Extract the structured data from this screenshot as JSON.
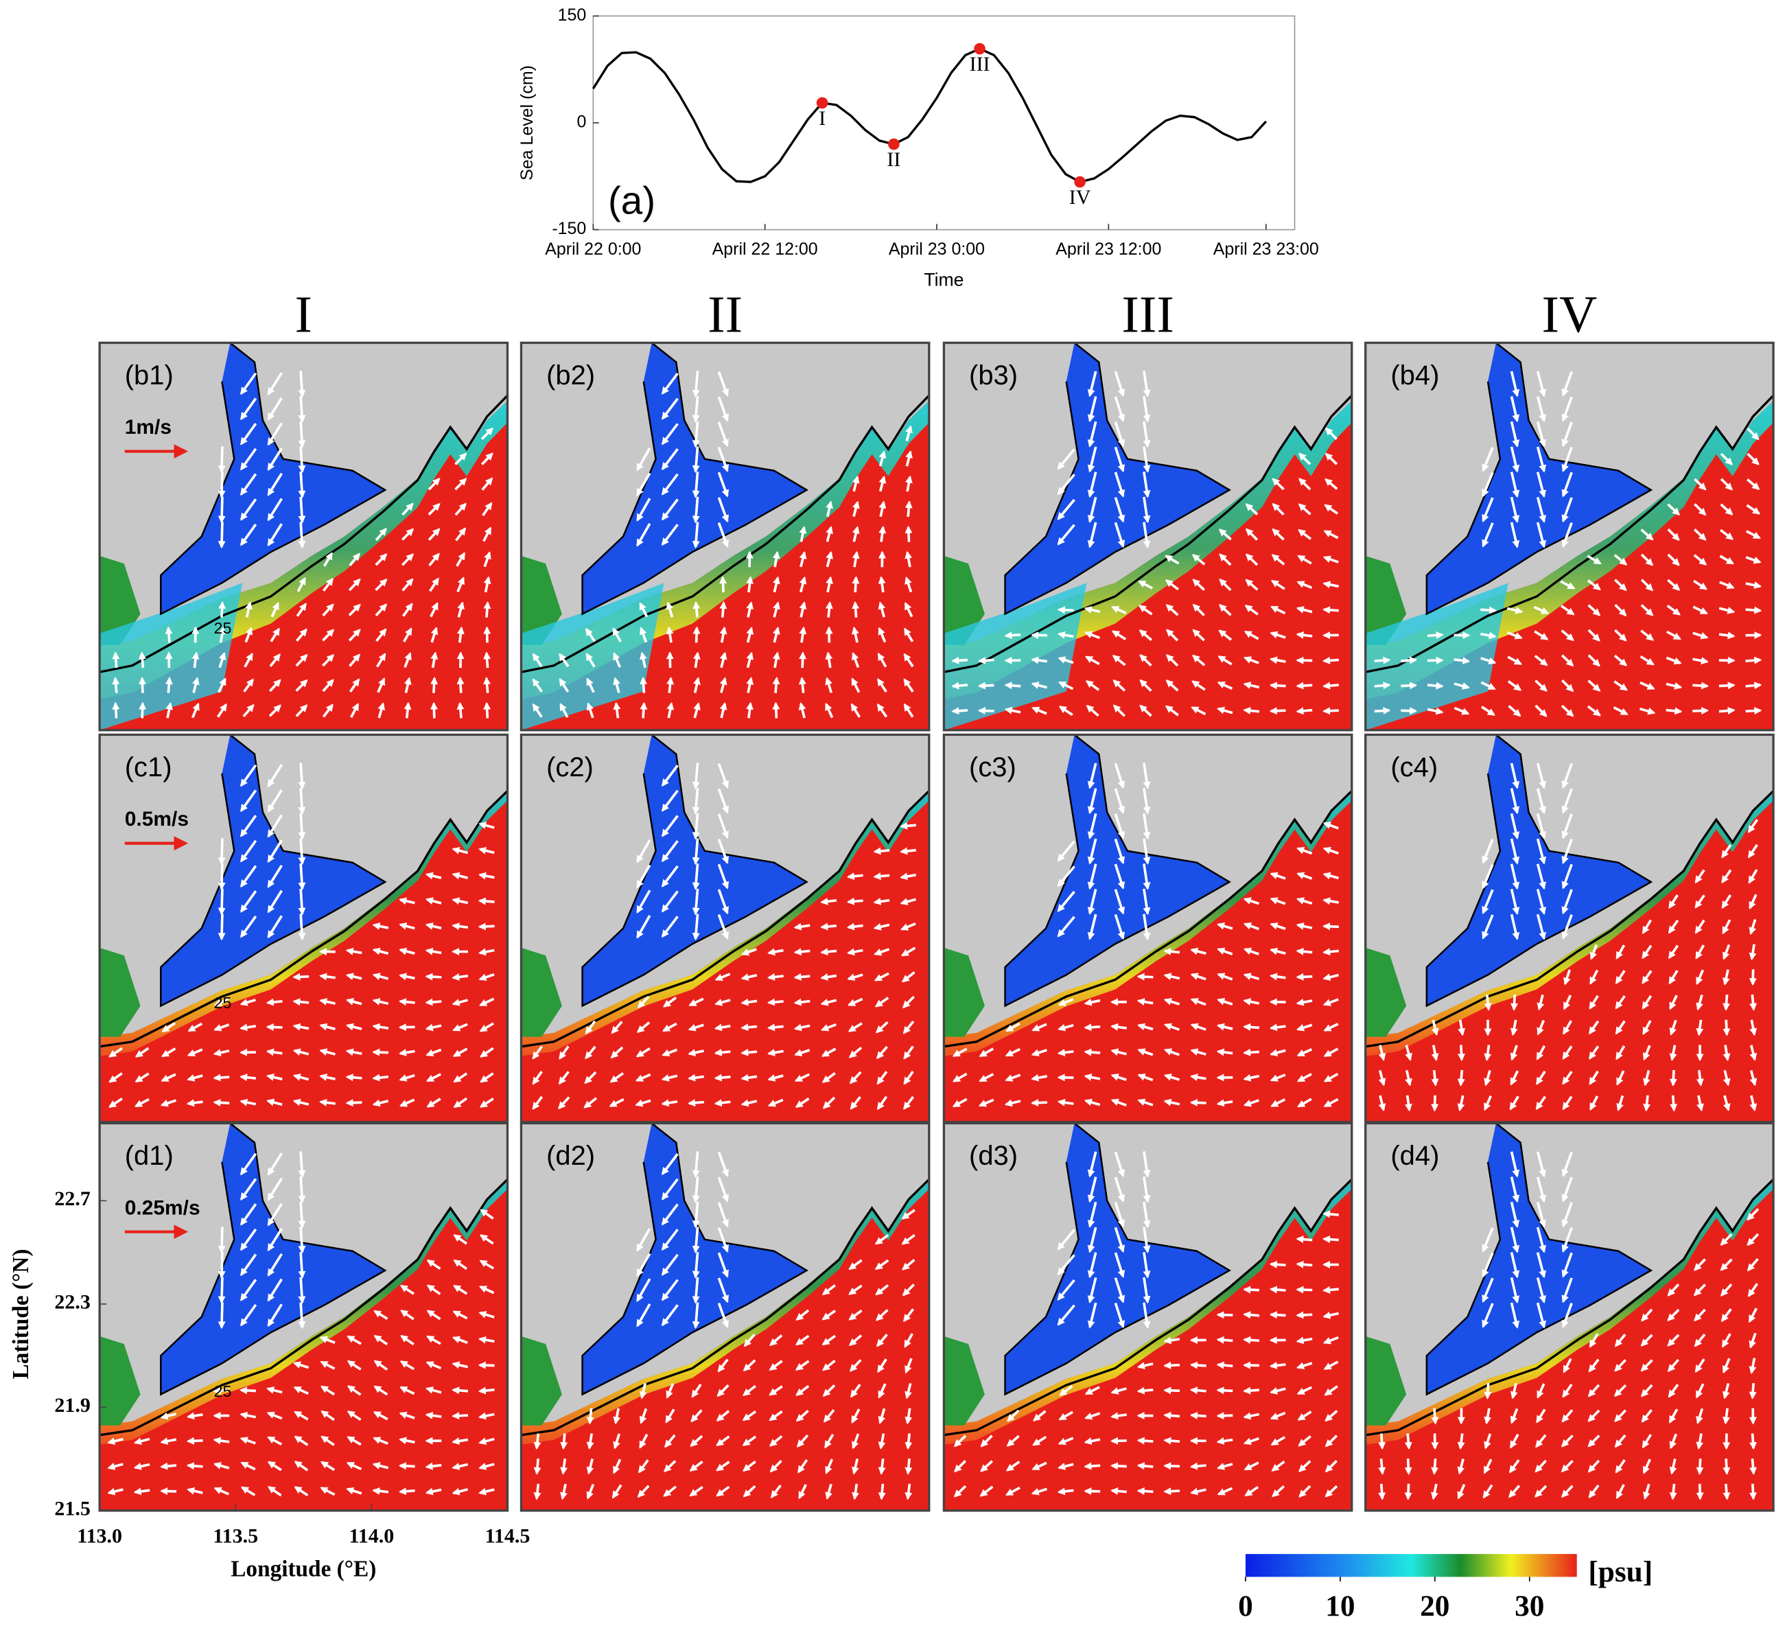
{
  "chart_data": {
    "type": "line",
    "panel_label": "(a)",
    "x_label": "Time",
    "y_label": "Sea Level (cm)",
    "x": [
      0,
      1,
      2,
      3,
      4,
      5,
      6,
      7,
      8,
      9,
      10,
      11,
      12,
      13,
      14,
      15,
      16,
      17,
      18,
      19,
      20,
      21,
      22,
      23,
      24,
      25,
      26,
      27,
      28,
      29,
      30,
      31,
      32,
      33,
      34,
      35,
      36,
      37,
      38,
      39,
      40,
      41,
      42,
      43,
      44,
      45,
      46,
      47
    ],
    "series": [
      {
        "color": "#000000",
        "values": [
          48,
          80,
          98,
          99,
          90,
          70,
          40,
          5,
          -35,
          -65,
          -82,
          -83,
          -75,
          -55,
          -25,
          5,
          28,
          25,
          10,
          -10,
          -25,
          -30,
          -20,
          5,
          35,
          70,
          95,
          104,
          95,
          70,
          35,
          -5,
          -45,
          -72,
          -83,
          -78,
          -65,
          -48,
          -30,
          -12,
          3,
          10,
          8,
          -2,
          -15,
          -24,
          -20,
          2
        ]
      }
    ],
    "points": [
      {
        "label": "I",
        "x": 16,
        "y": 28
      },
      {
        "label": "II",
        "x": 21,
        "y": -30
      },
      {
        "label": "III",
        "x": 27,
        "y": 104
      },
      {
        "label": "IV",
        "x": 34,
        "y": -83
      }
    ],
    "point_color": "#e8201a",
    "xlim": [
      0,
      49
    ],
    "xticks": [
      {
        "value": 0,
        "label": "April 22 0:00"
      },
      {
        "value": 12,
        "label": "April 22 12:00"
      },
      {
        "value": 24,
        "label": "April 23 0:00"
      },
      {
        "value": 36,
        "label": "April 23 12:00"
      },
      {
        "value": 47,
        "label": "April 23 23:00"
      }
    ],
    "ylim": [
      -150,
      150
    ],
    "yticks": [
      -150,
      0,
      150
    ]
  },
  "maps": {
    "columns": [
      "I",
      "II",
      "III",
      "IV"
    ],
    "panels": [
      [
        "(b1)",
        "(b2)",
        "(b3)",
        "(b4)"
      ],
      [
        "(c1)",
        "(c2)",
        "(c3)",
        "(c4)"
      ],
      [
        "(d1)",
        "(d2)",
        "(d3)",
        "(d4)"
      ]
    ],
    "scale_labels": [
      "1m/s",
      "0.5m/s",
      "0.25m/s"
    ],
    "contour_label": "25",
    "x_label": "Longitude (°E)",
    "y_label": "Latitude (°N)",
    "xlim": [
      113,
      114.5
    ],
    "xticks": [
      {
        "value": 113,
        "label": "113.0"
      },
      113.5,
      {
        "value": 114,
        "label": "114.0"
      },
      114.5
    ],
    "ylim": [
      21.5,
      23.0
    ],
    "yticks": [
      21.5,
      21.9,
      22.3,
      22.7
    ],
    "colorbar": {
      "lim": [
        0,
        35
      ],
      "ticks": [
        0,
        10,
        20,
        30
      ],
      "label": "[psu]"
    }
  }
}
